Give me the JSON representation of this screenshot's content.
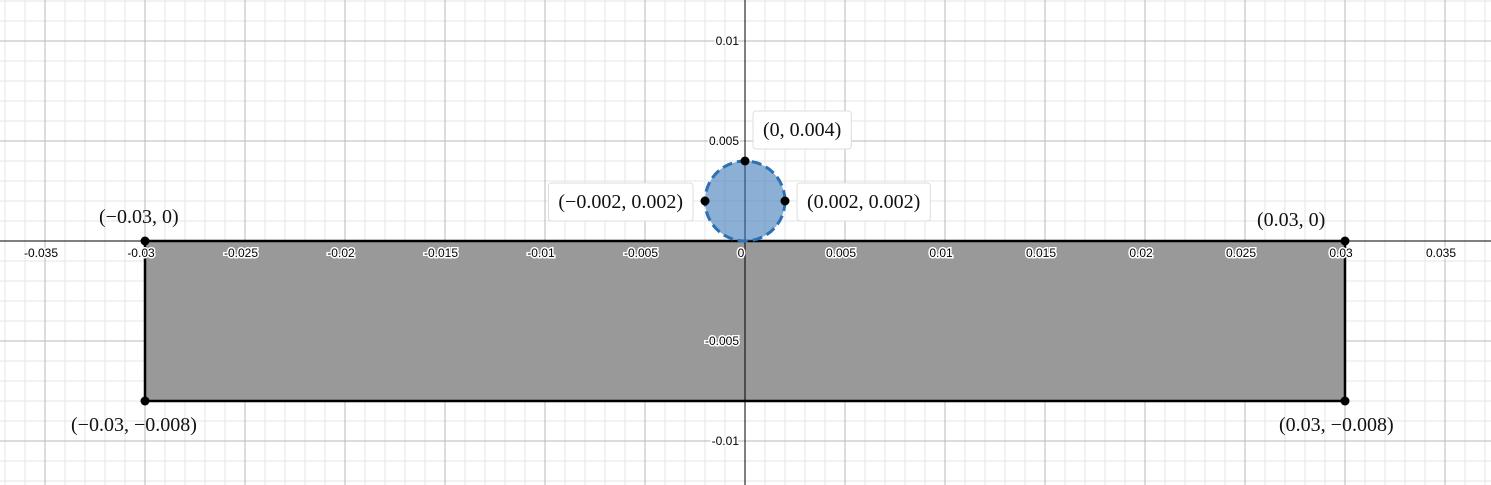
{
  "chart_data": {
    "type": "scatter",
    "xlim": [
      -0.03725,
      0.0373
    ],
    "ylim": [
      -0.0122,
      0.01205
    ],
    "xticks": [
      -0.035,
      -0.03,
      -0.025,
      -0.02,
      -0.015,
      -0.01,
      -0.005,
      0,
      0.005,
      0.01,
      0.015,
      0.02,
      0.025,
      0.03,
      0.035
    ],
    "yticks": [
      -0.01,
      -0.005,
      0.005,
      0.01
    ],
    "grid": true,
    "polygon": {
      "x": [
        -0.03,
        0.03,
        0.03,
        -0.03
      ],
      "y": [
        0,
        0,
        -0.008,
        -0.008
      ],
      "color": "#999999"
    },
    "circle": {
      "cx": 0,
      "cy": 0.002,
      "r": 0.002,
      "color": "#2d70b3"
    },
    "points": {
      "x": [
        -0.03,
        0.03,
        -0.03,
        0.03,
        0,
        -0.002,
        0.002
      ],
      "y": [
        0,
        0,
        -0.008,
        -0.008,
        0.004,
        0.002,
        0.002
      ],
      "labels": [
        "(−0.03, 0)",
        "(0.03, 0)",
        "(−0.03, −0.008)",
        "(0.03, −0.008)",
        "(0, 0.004)",
        "(−0.002, 0.002)",
        "(0.002, 0.002)"
      ],
      "color": "#000000"
    }
  }
}
